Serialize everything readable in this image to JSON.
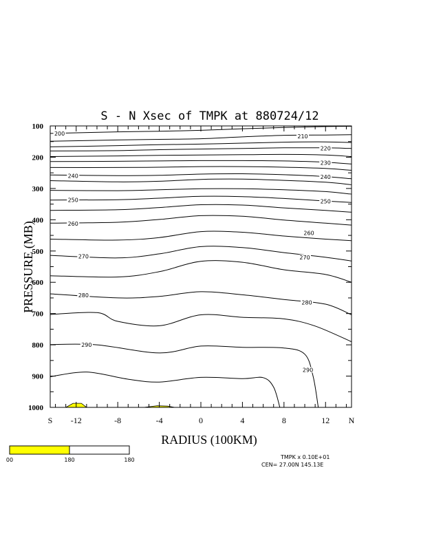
{
  "chart_data": {
    "type": "line",
    "title": "S - N Xsec of TMPK at 880724/12",
    "xlabel": "RADIUS (100KM)",
    "ylabel": "PRESSURE (MB)",
    "xlim": [
      -14.5,
      14.5
    ],
    "ylim": [
      1000,
      100
    ],
    "x_ticks": [
      {
        "value": -14.5,
        "label": "S"
      },
      {
        "value": -12,
        "label": "-12"
      },
      {
        "value": -8,
        "label": "-8"
      },
      {
        "value": -4,
        "label": "-4"
      },
      {
        "value": 0,
        "label": "0"
      },
      {
        "value": 4,
        "label": "4"
      },
      {
        "value": 8,
        "label": "8"
      },
      {
        "value": 12,
        "label": "12"
      },
      {
        "value": 14.5,
        "label": "N"
      }
    ],
    "y_ticks": [
      {
        "value": 100,
        "label": "100"
      },
      {
        "value": 200,
        "label": "200"
      },
      {
        "value": 300,
        "label": "300"
      },
      {
        "value": 400,
        "label": "400"
      },
      {
        "value": 500,
        "label": "500"
      },
      {
        "value": 600,
        "label": "600"
      },
      {
        "value": 700,
        "label": "700"
      },
      {
        "value": 800,
        "label": "800"
      },
      {
        "value": 900,
        "label": "900"
      },
      {
        "value": 1000,
        "label": "1000"
      }
    ],
    "series": [
      {
        "name": "200",
        "points": [
          [
            -14.5,
            124
          ],
          [
            -8,
            119
          ],
          [
            -4,
            117
          ],
          [
            0,
            114
          ],
          [
            4,
            109
          ],
          [
            8,
            105
          ],
          [
            12,
            102
          ],
          [
            14.5,
            101
          ]
        ]
      },
      {
        "name": "210",
        "points": [
          [
            -14.5,
            149
          ],
          [
            -8,
            145
          ],
          [
            -4,
            143
          ],
          [
            0,
            141
          ],
          [
            4,
            135
          ],
          [
            8,
            130
          ],
          [
            12,
            129
          ],
          [
            14.5,
            128
          ]
        ]
      },
      {
        "name": "",
        "points": [
          [
            -14.5,
            167
          ],
          [
            -8,
            163
          ],
          [
            -4,
            160
          ],
          [
            0,
            158
          ],
          [
            4,
            155
          ],
          [
            8,
            152
          ],
          [
            12,
            151
          ],
          [
            14.5,
            153
          ]
        ]
      },
      {
        "name": "220",
        "points": [
          [
            -14.5,
            180
          ],
          [
            -8,
            179
          ],
          [
            -4,
            176
          ],
          [
            0,
            174
          ],
          [
            4,
            172
          ],
          [
            8,
            170
          ],
          [
            12,
            170
          ],
          [
            14.5,
            172
          ]
        ]
      },
      {
        "name": "",
        "points": [
          [
            -14.5,
            198
          ],
          [
            -8,
            196
          ],
          [
            -4,
            194
          ],
          [
            0,
            193
          ],
          [
            4,
            192
          ],
          [
            8,
            191
          ],
          [
            12,
            193
          ],
          [
            14.5,
            198
          ]
        ]
      },
      {
        "name": "230",
        "points": [
          [
            -14.5,
            214
          ],
          [
            -8,
            213
          ],
          [
            -4,
            212
          ],
          [
            0,
            211
          ],
          [
            4,
            211
          ],
          [
            8,
            212
          ],
          [
            12,
            216
          ],
          [
            14.5,
            222
          ]
        ]
      },
      {
        "name": "",
        "points": [
          [
            -14.5,
            233
          ],
          [
            -8,
            233
          ],
          [
            -4,
            232
          ],
          [
            0,
            230
          ],
          [
            4,
            230
          ],
          [
            8,
            232
          ],
          [
            12,
            236
          ],
          [
            14.5,
            242
          ]
        ]
      },
      {
        "name": "240",
        "points": [
          [
            -14.5,
            257
          ],
          [
            -8,
            259
          ],
          [
            -4,
            258
          ],
          [
            0,
            254
          ],
          [
            4,
            253
          ],
          [
            8,
            256
          ],
          [
            12,
            262
          ],
          [
            14.5,
            269
          ]
        ]
      },
      {
        "name": "",
        "points": [
          [
            -14.5,
            275
          ],
          [
            -8,
            279
          ],
          [
            -4,
            277
          ],
          [
            0,
            271
          ],
          [
            4,
            270
          ],
          [
            8,
            274
          ],
          [
            12,
            280
          ],
          [
            14.5,
            288
          ]
        ]
      },
      {
        "name": "",
        "points": [
          [
            -14.5,
            306
          ],
          [
            -8,
            307
          ],
          [
            -4,
            304
          ],
          [
            0,
            301
          ],
          [
            4,
            301
          ],
          [
            8,
            304
          ],
          [
            12,
            310
          ],
          [
            14.5,
            318
          ]
        ]
      },
      {
        "name": "250",
        "points": [
          [
            -14.5,
            337
          ],
          [
            -8,
            336
          ],
          [
            -4,
            331
          ],
          [
            0,
            325
          ],
          [
            4,
            326
          ],
          [
            8,
            332
          ],
          [
            12,
            340
          ],
          [
            14.5,
            345
          ]
        ]
      },
      {
        "name": "",
        "points": [
          [
            -14.5,
            370
          ],
          [
            -8,
            368
          ],
          [
            -4,
            361
          ],
          [
            0,
            352
          ],
          [
            4,
            353
          ],
          [
            8,
            362
          ],
          [
            12,
            370
          ],
          [
            14.5,
            376
          ]
        ]
      },
      {
        "name": "260",
        "points": [
          [
            -14.5,
            411
          ],
          [
            -8,
            408
          ],
          [
            -4,
            399
          ],
          [
            0,
            387
          ],
          [
            4,
            389
          ],
          [
            8,
            401
          ],
          [
            12,
            411
          ],
          [
            14.5,
            417
          ]
        ]
      },
      {
        "name": "",
        "points": [
          [
            -14.5,
            462
          ],
          [
            -8,
            465
          ],
          [
            -4,
            457
          ],
          [
            0,
            438
          ],
          [
            4,
            440
          ],
          [
            8,
            452
          ],
          [
            12,
            462
          ],
          [
            14.5,
            467
          ]
        ]
      },
      {
        "name": "270",
        "points": [
          [
            -14.5,
            514
          ],
          [
            -8,
            522
          ],
          [
            -4,
            509
          ],
          [
            0,
            486
          ],
          [
            4,
            489
          ],
          [
            8,
            505
          ],
          [
            12,
            520
          ],
          [
            14.5,
            532
          ]
        ]
      },
      {
        "name": "",
        "points": [
          [
            -14.5,
            579
          ],
          [
            -8,
            583
          ],
          [
            -4,
            566
          ],
          [
            0,
            533
          ],
          [
            4,
            536
          ],
          [
            8,
            560
          ],
          [
            12,
            575
          ],
          [
            14.5,
            600
          ]
        ]
      },
      {
        "name": "280",
        "points": [
          [
            -14.5,
            637
          ],
          [
            -8,
            650
          ],
          [
            -4,
            645
          ],
          [
            0,
            630
          ],
          [
            4,
            640
          ],
          [
            8,
            655
          ],
          [
            12,
            670
          ],
          [
            14.5,
            704
          ]
        ]
      },
      {
        "name": "",
        "points": [
          [
            -14.5,
            703
          ],
          [
            -10,
            697
          ],
          [
            -8,
            725
          ],
          [
            -4,
            739
          ],
          [
            0,
            704
          ],
          [
            4,
            712
          ],
          [
            8,
            717
          ],
          [
            11,
            740
          ],
          [
            14.5,
            790
          ]
        ]
      },
      {
        "name": "290",
        "points": [
          [
            -14.5,
            799
          ],
          [
            -10,
            800
          ],
          [
            -4,
            826
          ],
          [
            0,
            804
          ],
          [
            4,
            808
          ],
          [
            8,
            810
          ],
          [
            10,
            830
          ],
          [
            10.8,
            900
          ],
          [
            11.3,
            1000
          ]
        ]
      },
      {
        "name": "",
        "points": [
          [
            -14.5,
            902
          ],
          [
            -11,
            887
          ],
          [
            -7,
            910
          ],
          [
            -4,
            919
          ],
          [
            0,
            904
          ],
          [
            4,
            908
          ],
          [
            6,
            905
          ],
          [
            7,
            935
          ],
          [
            7.6,
            1000
          ]
        ]
      }
    ],
    "shaded_regions": [
      {
        "label": "yellow",
        "points": [
          [
            -13,
            1000
          ],
          [
            -12.3,
            987
          ],
          [
            -11.5,
            987
          ],
          [
            -11,
            1000
          ]
        ]
      },
      {
        "label": "yellow",
        "points": [
          [
            -5.5,
            1000
          ],
          [
            -4.2,
            995
          ],
          [
            -3.2,
            996
          ],
          [
            -2.5,
            1000
          ]
        ]
      }
    ],
    "contour_labels": [
      {
        "text": "200",
        "x": -13.6,
        "y": 124
      },
      {
        "text": "210",
        "x": 9.8,
        "y": 133
      },
      {
        "text": "220",
        "x": 12.0,
        "y": 172
      },
      {
        "text": "230",
        "x": 12.0,
        "y": 218
      },
      {
        "text": "240",
        "x": -12.3,
        "y": 259
      },
      {
        "text": "240",
        "x": 12.0,
        "y": 263
      },
      {
        "text": "250",
        "x": -12.3,
        "y": 337
      },
      {
        "text": "250",
        "x": 12.0,
        "y": 341
      },
      {
        "text": "260",
        "x": -12.3,
        "y": 412
      },
      {
        "text": "260",
        "x": 10.4,
        "y": 442
      },
      {
        "text": "270",
        "x": -11.3,
        "y": 517
      },
      {
        "text": "270",
        "x": 10.0,
        "y": 520
      },
      {
        "text": "280",
        "x": -11.3,
        "y": 641
      },
      {
        "text": "280",
        "x": 10.2,
        "y": 664
      },
      {
        "text": "290",
        "x": -11.0,
        "y": 800
      },
      {
        "text": "290",
        "x": 10.3,
        "y": 880
      }
    ],
    "colors": {
      "line": "#000000",
      "fill": "#ffff00"
    }
  },
  "colorbar": {
    "labels": [
      "00",
      "180",
      "180"
    ],
    "colors": [
      "#ffff00",
      "#ffffff"
    ]
  },
  "footer": {
    "line1": "TMPK x  0.10E+01",
    "line2": "CEN= 27.00N  145.13E"
  }
}
